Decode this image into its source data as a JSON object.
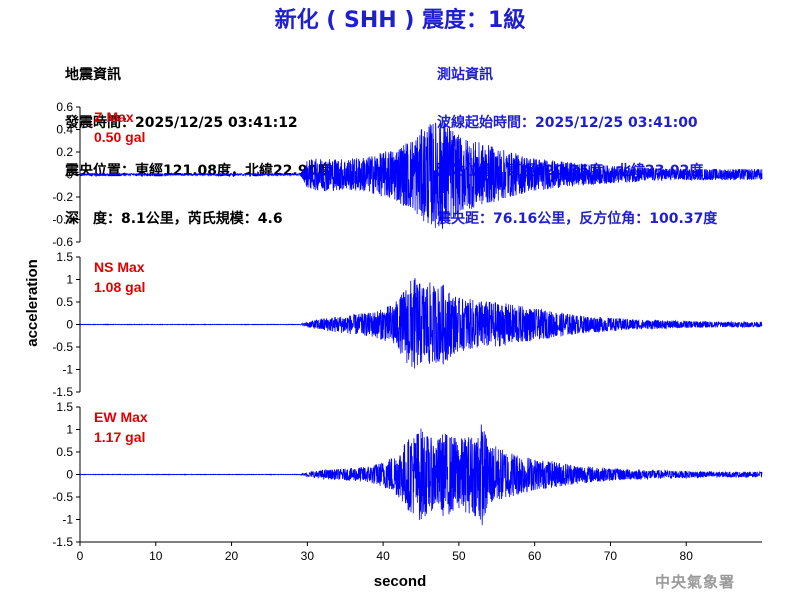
{
  "title": "新化 ( SHH ) 震度：1級",
  "quake_info": {
    "heading": "地震資訊",
    "origin_time": "發震時間：2025/12/25 03:41:12",
    "epicenter": "震央位置：東經121.08度，北緯22.90度",
    "depth_magnitude": "深　度：8.1公里，芮氏規模：4.6"
  },
  "station_info": {
    "heading": "測站資訊",
    "start_time": "波線起始時間：2025/12/25 03:41:00",
    "location": "測站位置：東經120.35度，北緯23.02度",
    "distance": "震央距：76.16公里，反方位角：100.37度"
  },
  "watermark": "中央氣象署",
  "colors": {
    "trace": "#0000ff",
    "label": "#e00000",
    "title": "#1f1fd0"
  },
  "chart_data": {
    "type": "line",
    "xlabel": "second",
    "ylabel": "acceleration",
    "xlim": [
      0,
      90
    ],
    "x_ticks": [
      0,
      10,
      20,
      30,
      40,
      50,
      60,
      70,
      80
    ],
    "grid": false,
    "panels": [
      {
        "name": "Z",
        "label": "Z Max",
        "max_text": "0.50 gal",
        "ylim": [
          -0.6,
          0.6
        ],
        "y_ticks": [
          -0.6,
          -0.4,
          -0.2,
          0,
          0.2,
          0.4,
          0.6
        ],
        "envelope": {
          "t": [
            0,
            29,
            29.5,
            30,
            32,
            35,
            38,
            40,
            42,
            44,
            45,
            46,
            47,
            48,
            49,
            50,
            52,
            55,
            58,
            60,
            63,
            66,
            70,
            75,
            80,
            85,
            90
          ],
          "amp": [
            0.008,
            0.008,
            0.05,
            0.13,
            0.15,
            0.14,
            0.16,
            0.2,
            0.25,
            0.33,
            0.4,
            0.45,
            0.48,
            0.5,
            0.42,
            0.35,
            0.3,
            0.24,
            0.18,
            0.15,
            0.12,
            0.1,
            0.08,
            0.06,
            0.05,
            0.05,
            0.05
          ]
        }
      },
      {
        "name": "NS",
        "label": "NS Max",
        "max_text": "1.08 gal",
        "ylim": [
          -1.5,
          1.5
        ],
        "y_ticks": [
          -1.5,
          -1,
          -0.5,
          0,
          0.5,
          1,
          1.5
        ],
        "envelope": {
          "t": [
            0,
            29,
            30,
            32,
            35,
            38,
            40,
            42,
            43,
            44,
            45,
            46,
            47,
            48,
            49,
            50,
            52,
            55,
            58,
            60,
            63,
            66,
            70,
            75,
            80,
            85,
            90
          ],
          "amp": [
            0.005,
            0.005,
            0.06,
            0.14,
            0.2,
            0.26,
            0.35,
            0.55,
            0.85,
            1.08,
            0.9,
            0.95,
            0.85,
            0.9,
            0.7,
            0.6,
            0.55,
            0.5,
            0.42,
            0.35,
            0.28,
            0.2,
            0.15,
            0.1,
            0.08,
            0.06,
            0.06
          ]
        }
      },
      {
        "name": "EW",
        "label": "EW Max",
        "max_text": "1.17 gal",
        "ylim": [
          -1.5,
          1.5
        ],
        "y_ticks": [
          -1.5,
          -1,
          -0.5,
          0,
          0.5,
          1,
          1.5
        ],
        "envelope": {
          "t": [
            0,
            29,
            30,
            32,
            35,
            38,
            40,
            42,
            43,
            44,
            45,
            46,
            47,
            48,
            50,
            52,
            53,
            54,
            56,
            58,
            60,
            63,
            66,
            70,
            75,
            80,
            85,
            90
          ],
          "amp": [
            0.005,
            0.005,
            0.05,
            0.1,
            0.13,
            0.18,
            0.28,
            0.5,
            0.75,
            0.9,
            1.05,
            0.85,
            0.75,
            0.95,
            0.8,
            0.9,
            1.17,
            0.7,
            0.55,
            0.45,
            0.35,
            0.28,
            0.2,
            0.14,
            0.1,
            0.08,
            0.06,
            0.06
          ]
        }
      }
    ]
  }
}
